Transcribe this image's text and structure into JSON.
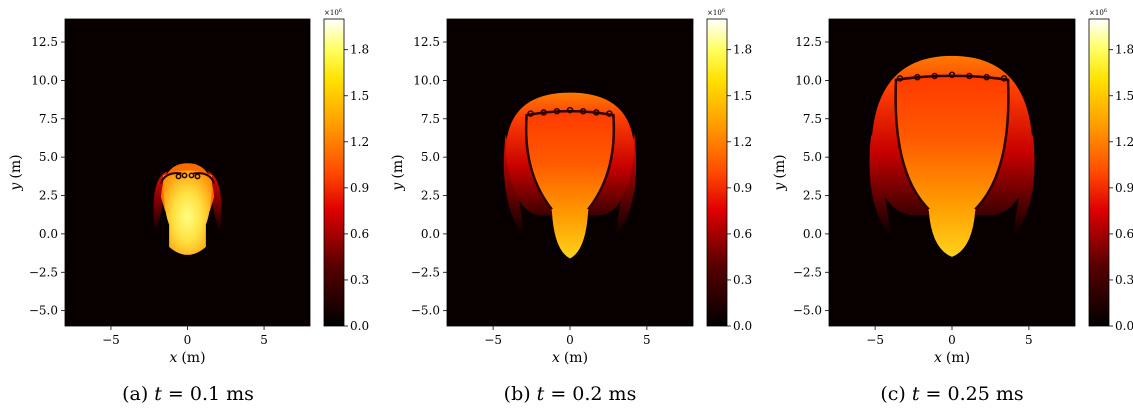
{
  "panels": [
    {
      "caption": "(a) t = 0.1 ms",
      "caption_parts": {
        "label": "(a)",
        "var": "t",
        "eq": " = 0.1 ms"
      },
      "xlabel": {
        "var": "x",
        "unit": "(m)"
      },
      "ylabel": {
        "var": "y",
        "unit": "(m)"
      },
      "xticks": [
        "−5",
        "0",
        "5"
      ],
      "yticks": [
        "12.5",
        "10.0",
        "7.5",
        "5.0",
        "2.5",
        "0.0",
        "−2.5",
        "−5.0"
      ],
      "colorbar": {
        "multiplier": "×10",
        "exponent": "6",
        "ticks": [
          "1.8",
          "1.5",
          "1.2",
          "0.9",
          "0.6",
          "0.3",
          "0.0"
        ]
      }
    },
    {
      "caption": "(b) t = 0.2 ms",
      "caption_parts": {
        "label": "(b)",
        "var": "t",
        "eq": " = 0.2 ms"
      },
      "xlabel": {
        "var": "x",
        "unit": "(m)"
      },
      "ylabel": {
        "var": "y",
        "unit": "(m)"
      },
      "xticks": [
        "−5",
        "0",
        "5"
      ],
      "yticks": [
        "12.5",
        "10.0",
        "7.5",
        "5.0",
        "2.5",
        "0.0",
        "−2.5",
        "−5.0"
      ],
      "colorbar": {
        "multiplier": "×10",
        "exponent": "6",
        "ticks": [
          "1.8",
          "1.5",
          "1.2",
          "0.9",
          "0.6",
          "0.3",
          "0.0"
        ]
      }
    },
    {
      "caption": "(c) t = 0.25 ms",
      "caption_parts": {
        "label": "(c)",
        "var": "t",
        "eq": " = 0.25 ms"
      },
      "xlabel": {
        "var": "x",
        "unit": "(m)"
      },
      "ylabel": {
        "var": "y",
        "unit": "(m)"
      },
      "xticks": [
        "−5",
        "0",
        "5"
      ],
      "yticks": [
        "12.5",
        "10.0",
        "7.5",
        "5.0",
        "2.5",
        "0.0",
        "−2.5",
        "−5.0"
      ],
      "colorbar": {
        "multiplier": "×10",
        "exponent": "6",
        "ticks": [
          "1.8",
          "1.5",
          "1.2",
          "0.9",
          "0.6",
          "0.3",
          "0.0"
        ]
      }
    }
  ],
  "chart_data": [
    {
      "type": "heatmap",
      "xlim": [
        -8,
        8
      ],
      "ylim": [
        -6,
        14
      ],
      "xticks": [
        -5,
        0,
        5
      ],
      "yticks": [
        12.5,
        10.0,
        7.5,
        5.0,
        2.5,
        0.0,
        -2.5,
        -5.0
      ],
      "colorbar": {
        "range": [
          0.0,
          2.0
        ],
        "scale": 1000000,
        "ticks": [
          0.0,
          0.3,
          0.6,
          0.9,
          1.2,
          1.5,
          1.8
        ],
        "colormap": "hot"
      },
      "background_value": 0.0,
      "core": {
        "x_half_width": 1.6,
        "y_bottom": -1.5,
        "y_top": 4.2,
        "peak_value": 1.6
      },
      "shock_front_top_y": 4.6
    },
    {
      "type": "heatmap",
      "xlim": [
        -8,
        8
      ],
      "ylim": [
        -6,
        14
      ],
      "xticks": [
        -5,
        0,
        5
      ],
      "yticks": [
        12.5,
        10.0,
        7.5,
        5.0,
        2.5,
        0.0,
        -2.5,
        -5.0
      ],
      "colorbar": {
        "range": [
          0.0,
          2.0
        ],
        "scale": 1000000,
        "ticks": [
          0.0,
          0.3,
          0.6,
          0.9,
          1.2,
          1.5,
          1.8
        ],
        "colormap": "hot"
      },
      "background_value": 0.0,
      "core": {
        "x_half_width": 3.6,
        "y_bottom": -1.6,
        "y_top": 8.0,
        "peak_value": 1.4
      },
      "shock_front_top_y": 9.2
    },
    {
      "type": "heatmap",
      "xlim": [
        -8,
        8
      ],
      "ylim": [
        -6,
        14
      ],
      "xticks": [
        -5,
        0,
        5
      ],
      "yticks": [
        12.5,
        10.0,
        7.5,
        5.0,
        2.5,
        0.0,
        -2.5,
        -5.0
      ],
      "colorbar": {
        "range": [
          0.0,
          2.0
        ],
        "scale": 1000000,
        "ticks": [
          0.0,
          0.3,
          0.6,
          0.9,
          1.2,
          1.5,
          1.8
        ],
        "colormap": "hot"
      },
      "background_value": 0.0,
      "core": {
        "x_half_width": 4.6,
        "y_bottom": -1.5,
        "y_top": 10.3,
        "peak_value": 1.3
      },
      "shock_front_top_y": 11.6
    }
  ]
}
